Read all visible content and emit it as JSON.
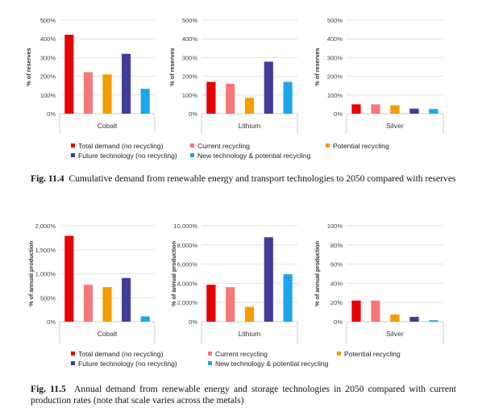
{
  "figures": [
    {
      "caption_label": "Fig. 11.4",
      "caption_text": "Cumulative demand from renewable energy and transport technologies to 2050 compared with reserves",
      "legend": [
        "Total demand (no recycling)",
        "Current recycling",
        "Potential recycling",
        "Future technology (no recycling)",
        "New technology & potential recycling"
      ]
    },
    {
      "caption_label": "Fig. 11.5",
      "caption_text": "Annual demand from renewable energy and storage technologies in 2050 compared with current production rates (note that scale varies across the metals)",
      "legend": [
        "Total demand (no recycling)",
        "Current recycling",
        "Potential recycling",
        "Future technology (no recycling)",
        "New technology & potential recycling"
      ]
    }
  ],
  "colors": [
    "#e60000",
    "#f4797b",
    "#f59c00",
    "#3f3c9a",
    "#1aa6e8"
  ],
  "chart_data": [
    {
      "type": "bar",
      "figure": "Fig. 11.4",
      "panel": "Cobalt",
      "ylabel": "% of reserves",
      "ylim": [
        0,
        500
      ],
      "yticks": [
        0,
        100,
        200,
        300,
        400,
        500
      ],
      "tick_labels": [
        "0%",
        "100%",
        "200%",
        "300%",
        "400%",
        "500%"
      ],
      "series_names": [
        "Total demand (no recycling)",
        "Current recycling",
        "Potential recycling",
        "Future technology (no recycling)",
        "New technology & potential recycling"
      ],
      "values": [
        422,
        222,
        210,
        320,
        133
      ]
    },
    {
      "type": "bar",
      "figure": "Fig. 11.4",
      "panel": "Lithium",
      "ylabel": "% of reserves",
      "ylim": [
        0,
        500
      ],
      "yticks": [
        0,
        100,
        200,
        300,
        400,
        500
      ],
      "tick_labels": [
        "0%",
        "100%",
        "200%",
        "300%",
        "400%",
        "500%"
      ],
      "series_names": [
        "Total demand (no recycling)",
        "Current recycling",
        "Potential recycling",
        "Future technology (no recycling)",
        "New technology & potential recycling"
      ],
      "values": [
        170,
        160,
        85,
        278,
        170
      ]
    },
    {
      "type": "bar",
      "figure": "Fig. 11.4",
      "panel": "Silver",
      "ylabel": "% of reserves",
      "ylim": [
        0,
        500
      ],
      "yticks": [
        0,
        100,
        200,
        300,
        400,
        500
      ],
      "tick_labels": [
        "0%",
        "100%",
        "200%",
        "300%",
        "400%",
        "500%"
      ],
      "series_names": [
        "Total demand (no recycling)",
        "Current recycling",
        "Potential recycling",
        "Future technology (no recycling)",
        "New technology & potential recycling"
      ],
      "values": [
        50,
        50,
        45,
        27,
        25
      ]
    },
    {
      "type": "bar",
      "figure": "Fig. 11.5",
      "panel": "Cobalt",
      "ylabel": "% of annual production",
      "ylim": [
        0,
        2000
      ],
      "yticks": [
        0,
        500,
        1000,
        1500,
        2000
      ],
      "tick_labels": [
        "0%",
        "500%",
        "1,000%",
        "1,500%",
        "2,000%"
      ],
      "series_names": [
        "Total demand (no recycling)",
        "Current recycling",
        "Potential recycling",
        "Future technology (no recycling)",
        "New technology & potential recycling"
      ],
      "values": [
        1790,
        770,
        720,
        910,
        110
      ]
    },
    {
      "type": "bar",
      "figure": "Fig. 11.5",
      "panel": "Lithium",
      "ylabel": "% of annual production",
      "ylim": [
        0,
        10000
      ],
      "yticks": [
        0,
        2000,
        4000,
        6000,
        8000,
        10000
      ],
      "tick_labels": [
        "0%",
        "2,000%",
        "4,000%",
        "6,000%",
        "8,000%",
        "10,000%"
      ],
      "series_names": [
        "Total demand (no recycling)",
        "Current recycling",
        "Potential recycling",
        "Future technology (no recycling)",
        "New technology & potential recycling"
      ],
      "values": [
        3850,
        3600,
        1550,
        8800,
        4950
      ]
    },
    {
      "type": "bar",
      "figure": "Fig. 11.5",
      "panel": "Silver",
      "ylabel": "% of annual production",
      "ylim": [
        0,
        100
      ],
      "yticks": [
        0,
        20,
        40,
        60,
        80,
        100
      ],
      "tick_labels": [
        "0%",
        "20%",
        "40%",
        "60%",
        "80%",
        "100%"
      ],
      "series_names": [
        "Total demand (no recycling)",
        "Current recycling",
        "Potential recycling",
        "Future technology (no recycling)",
        "New technology & potential recycling"
      ],
      "values": [
        22,
        22,
        7.5,
        5,
        1.5
      ]
    }
  ]
}
